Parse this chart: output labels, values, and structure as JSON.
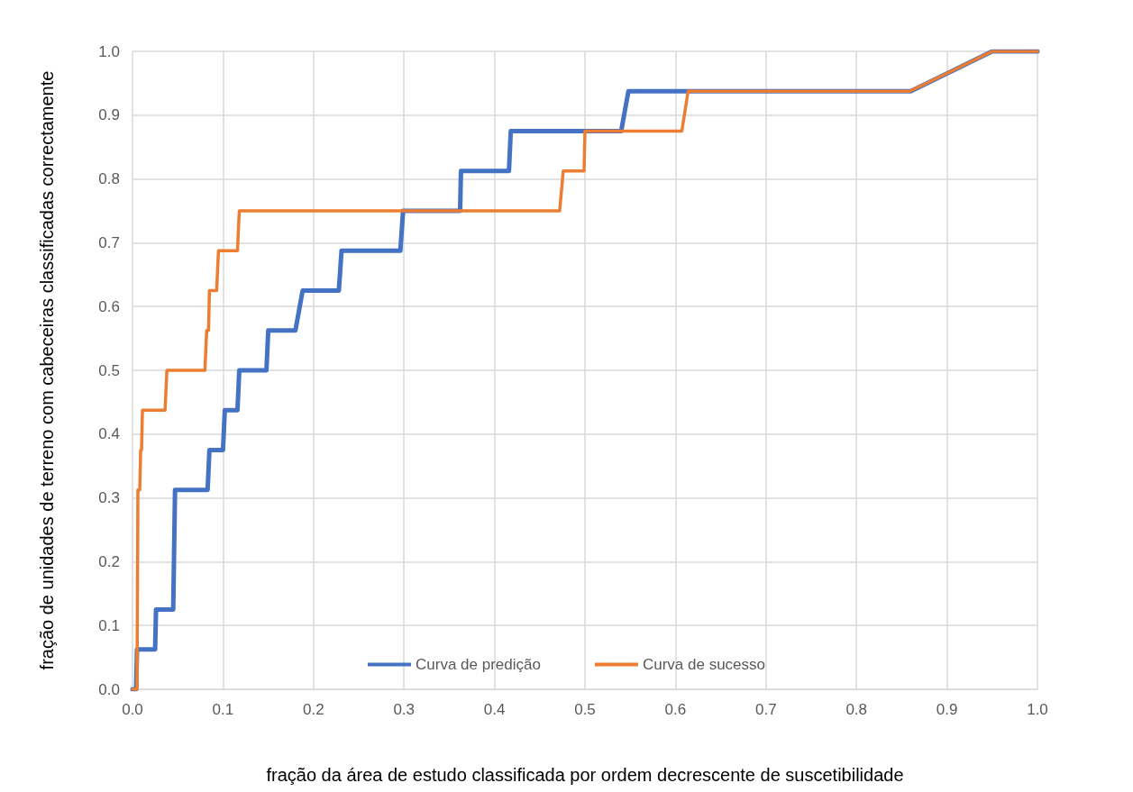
{
  "chart_data": {
    "type": "line",
    "xlabel": "fração da área de estudo classificada por ordem decrescente de suscetibilidade",
    "ylabel": "fração de unidades de terreno com cabeceiras classificadas correctamente",
    "xlim": [
      0,
      1
    ],
    "ylim": [
      0,
      1
    ],
    "xticks": [
      {
        "value": 0,
        "label": "0.0"
      },
      {
        "value": 0.1,
        "label": "0.1"
      },
      {
        "value": 0.2,
        "label": "0.2"
      },
      {
        "value": 0.3,
        "label": "0.3"
      },
      {
        "value": 0.4,
        "label": "0.4"
      },
      {
        "value": 0.5,
        "label": "0.5"
      },
      {
        "value": 0.6,
        "label": "0.6"
      },
      {
        "value": 0.7,
        "label": "0.7"
      },
      {
        "value": 0.8,
        "label": "0.8"
      },
      {
        "value": 0.9,
        "label": "0.9"
      },
      {
        "value": 1,
        "label": "1.0"
      }
    ],
    "yticks": [
      {
        "value": 0,
        "label": "0.0"
      },
      {
        "value": 0.1,
        "label": "0.1"
      },
      {
        "value": 0.2,
        "label": "0.2"
      },
      {
        "value": 0.3,
        "label": "0.3"
      },
      {
        "value": 0.4,
        "label": "0.4"
      },
      {
        "value": 0.5,
        "label": "0.5"
      },
      {
        "value": 0.6,
        "label": "0.6"
      },
      {
        "value": 0.7,
        "label": "0.7"
      },
      {
        "value": 0.8,
        "label": "0.8"
      },
      {
        "value": 0.9,
        "label": "0.9"
      },
      {
        "value": 1,
        "label": "1.0"
      }
    ],
    "grid": true,
    "legend": "bottom",
    "marker": "none",
    "line_style": "solid",
    "series": [
      {
        "name": "Curva de predição",
        "color": "#4472c4",
        "x": [
          0,
          0.004,
          0.005,
          0.025,
          0.026,
          0.045,
          0.047,
          0.083,
          0.085,
          0.1,
          0.102,
          0.116,
          0.118,
          0.148,
          0.15,
          0.18,
          0.188,
          0.228,
          0.231,
          0.296,
          0.299,
          0.362,
          0.363,
          0.416,
          0.418,
          0.54,
          0.548,
          0.86,
          0.95,
          1
        ],
        "values": [
          0,
          0,
          0.0625,
          0.0625,
          0.125,
          0.125,
          0.3125,
          0.3125,
          0.375,
          0.375,
          0.4375,
          0.4375,
          0.5,
          0.5,
          0.5625,
          0.5625,
          0.625,
          0.625,
          0.6875,
          0.6875,
          0.75,
          0.75,
          0.8125,
          0.8125,
          0.875,
          0.875,
          0.9375,
          0.9375,
          1,
          1
        ]
      },
      {
        "name": "Curva de sucesso",
        "color": "#ed7d31",
        "x": [
          0,
          0.005,
          0.006,
          0.008,
          0.009,
          0.01,
          0.011,
          0.036,
          0.038,
          0.08,
          0.082,
          0.084,
          0.085,
          0.093,
          0.095,
          0.116,
          0.118,
          0.472,
          0.476,
          0.499,
          0.5,
          0.607,
          0.614,
          0.859,
          0.95,
          1
        ],
        "values": [
          0,
          0,
          0.3125,
          0.3125,
          0.375,
          0.375,
          0.4375,
          0.4375,
          0.5,
          0.5,
          0.5625,
          0.5625,
          0.625,
          0.625,
          0.6875,
          0.6875,
          0.75,
          0.75,
          0.8125,
          0.8125,
          0.875,
          0.875,
          0.9375,
          0.9375,
          1,
          1
        ]
      }
    ]
  }
}
